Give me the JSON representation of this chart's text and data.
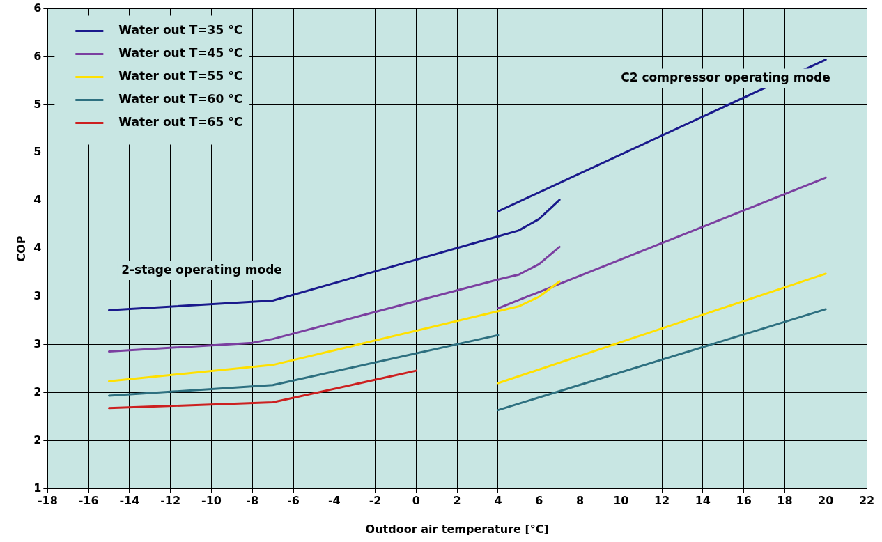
{
  "chart_data": {
    "type": "line",
    "xlabel": "Outdoor air temperature [°C]",
    "ylabel": "COP",
    "xlim": [
      -18,
      22
    ],
    "xticks": [
      -18,
      -16,
      -14,
      -12,
      -10,
      -8,
      -6,
      -4,
      -2,
      0,
      2,
      4,
      6,
      8,
      10,
      12,
      14,
      16,
      18,
      20,
      22
    ],
    "ylim": [
      1,
      6
    ],
    "yticks": [
      {
        "value": 1,
        "label": "1"
      },
      {
        "value": 1.5,
        "label": "2"
      },
      {
        "value": 2,
        "label": "2"
      },
      {
        "value": 2.5,
        "label": "3"
      },
      {
        "value": 3,
        "label": "3"
      },
      {
        "value": 3.5,
        "label": "4"
      },
      {
        "value": 4,
        "label": "4"
      },
      {
        "value": 4.5,
        "label": "5"
      },
      {
        "value": 5,
        "label": "5"
      },
      {
        "value": 5.5,
        "label": "6"
      },
      {
        "value": 6,
        "label": "6"
      }
    ],
    "grid": true,
    "legend": "top left",
    "marker": "none",
    "line_style": "solid",
    "annotations": [
      "C2 compressor operating mode",
      "2-stage operating mode"
    ],
    "series": [
      {
        "name": "Water out T=35 °C",
        "color": "#1a1a8c",
        "x": [
          -15,
          -7,
          4,
          5,
          6,
          7
        ],
        "values": [
          2.86,
          2.96,
          3.63,
          3.69,
          3.81,
          4.01
        ]
      },
      {
        "name": "Water out T=45 °C",
        "color": "#7b3fa0",
        "x": [
          -15,
          -8,
          -7,
          4,
          5,
          6,
          7
        ],
        "values": [
          2.43,
          2.52,
          2.56,
          3.18,
          3.23,
          3.34,
          3.52
        ]
      },
      {
        "name": "Water out T=55 °C",
        "color": "#ffe000",
        "x": [
          -15,
          -7,
          4,
          5,
          6,
          7
        ],
        "values": [
          2.12,
          2.29,
          2.85,
          2.9,
          3.0,
          3.16
        ]
      },
      {
        "name": "Water out T=60 °C",
        "color": "#2e7080",
        "x": [
          -15,
          -7,
          4
        ],
        "values": [
          1.97,
          2.08,
          2.6
        ]
      },
      {
        "name": "Water out T=65 °C",
        "color": "#cc2020",
        "x": [
          -15,
          -7,
          0
        ],
        "values": [
          1.84,
          1.9,
          2.23
        ]
      },
      {
        "color": "#1a1a8c",
        "x": [
          4,
          20
        ],
        "values": [
          3.89,
          5.47
        ]
      },
      {
        "color": "#7b3fa0",
        "x": [
          4,
          20
        ],
        "values": [
          2.88,
          4.24
        ]
      },
      {
        "color": "#ffe000",
        "x": [
          4,
          20
        ],
        "values": [
          2.1,
          3.24
        ]
      },
      {
        "color": "#2e7080",
        "x": [
          4,
          20
        ],
        "values": [
          1.82,
          2.87
        ]
      }
    ]
  }
}
